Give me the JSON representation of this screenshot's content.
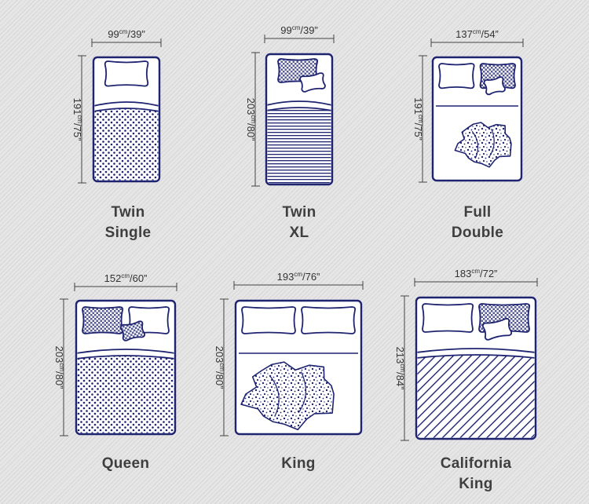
{
  "beds": [
    {
      "id": "twin",
      "name_lines": [
        "Twin",
        "Single"
      ],
      "width": {
        "cm": "99",
        "in": "/39”"
      },
      "length": {
        "cm": "191",
        "in": "/75”"
      },
      "pillows": "one",
      "cover_pattern": "dots"
    },
    {
      "id": "twin-xl",
      "name_lines": [
        "Twin",
        "XL"
      ],
      "width": {
        "cm": "99",
        "in": "/39”"
      },
      "length": {
        "cm": "203",
        "in": "/80”"
      },
      "pillows": "one",
      "cover_pattern": "horizontal-stripes"
    },
    {
      "id": "full",
      "name_lines": [
        "Full",
        "Double"
      ],
      "width": {
        "cm": "137",
        "in": "/54”"
      },
      "length": {
        "cm": "191",
        "in": "/75”"
      },
      "pillows": "two",
      "cover_pattern": "crumpled-blanket"
    },
    {
      "id": "queen",
      "name_lines": [
        "Queen"
      ],
      "width": {
        "cm": "152",
        "in": "/60”"
      },
      "length": {
        "cm": "203",
        "in": "/80”"
      },
      "pillows": "two",
      "cover_pattern": "dots"
    },
    {
      "id": "king",
      "name_lines": [
        "King"
      ],
      "width": {
        "cm": "193",
        "in": "/76”"
      },
      "length": {
        "cm": "203",
        "in": "/80”"
      },
      "pillows": "two",
      "cover_pattern": "crumpled-blanket"
    },
    {
      "id": "california-king",
      "name_lines": [
        "California",
        "King"
      ],
      "width": {
        "cm": "183",
        "in": "/72”"
      },
      "length": {
        "cm": "213",
        "in": "/84”"
      },
      "pillows": "two",
      "cover_pattern": "diagonal-stripes"
    }
  ],
  "unit_label": "cm",
  "colors": {
    "outline": "#1f2470",
    "dimension_text": "#333333",
    "caption": "#3f3f3f",
    "background": "#e3e3e3"
  }
}
